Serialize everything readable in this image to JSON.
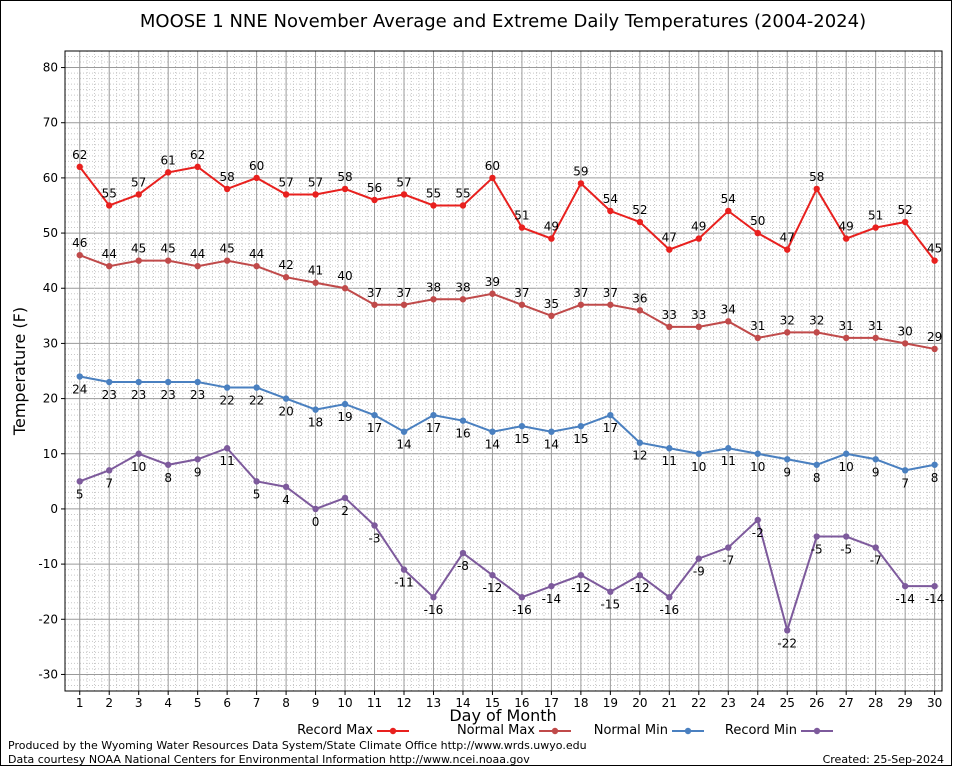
{
  "chart_data": {
    "type": "line",
    "title": "MOOSE 1 NNE November Average and Extreme Daily Temperatures (2004-2024)",
    "xlabel": "Day of Month",
    "ylabel": "Temperature (F)",
    "ylim": [
      -33,
      83
    ],
    "yticks": [
      -30,
      -20,
      -10,
      0,
      10,
      20,
      30,
      40,
      50,
      60,
      70,
      80
    ],
    "x": [
      1,
      2,
      3,
      4,
      5,
      6,
      7,
      8,
      9,
      10,
      11,
      12,
      13,
      14,
      15,
      16,
      17,
      18,
      19,
      20,
      21,
      22,
      23,
      24,
      25,
      26,
      27,
      28,
      29,
      30
    ],
    "grid": true,
    "legend_position": "bottom",
    "series": [
      {
        "name": "Record Max",
        "color": "#e8201e",
        "label_pos": "above",
        "values": [
          62,
          55,
          57,
          61,
          62,
          58,
          60,
          57,
          57,
          58,
          56,
          57,
          55,
          55,
          60,
          51,
          49,
          59,
          54,
          52,
          47,
          49,
          54,
          50,
          47,
          58,
          49,
          51,
          52,
          45
        ]
      },
      {
        "name": "Normal Max",
        "color": "#c04a4a",
        "label_pos": "above",
        "values": [
          46,
          44,
          45,
          45,
          44,
          45,
          44,
          42,
          41,
          40,
          37,
          37,
          38,
          38,
          39,
          37,
          35,
          37,
          37,
          36,
          33,
          33,
          34,
          31,
          32,
          32,
          31,
          31,
          30,
          29
        ]
      },
      {
        "name": "Normal Min",
        "color": "#4a80c0",
        "label_pos": "below",
        "values": [
          24,
          23,
          23,
          23,
          23,
          22,
          22,
          20,
          18,
          19,
          17,
          14,
          17,
          16,
          14,
          15,
          14,
          15,
          17,
          12,
          11,
          10,
          11,
          10,
          9,
          8,
          10,
          9,
          7,
          8
        ]
      },
      {
        "name": "Record Min",
        "color": "#7d5a9c",
        "label_pos": "below",
        "values": [
          5,
          7,
          10,
          8,
          9,
          11,
          5,
          4,
          0,
          2,
          -3,
          -11,
          -16,
          -8,
          -12,
          -16,
          -14,
          -12,
          -15,
          -12,
          -16,
          -9,
          -7,
          -2,
          -22,
          -5,
          -5,
          -7,
          -14,
          -14
        ]
      }
    ]
  },
  "footer": {
    "produced": "Produced by the Wyoming Water Resources Data System/State Climate Office http://www.wrds.uwyo.edu",
    "courtesy": "Data courtesy NOAA National Centers for Environmental Information http://www.ncei.noaa.gov",
    "created": "Created:  25-Sep-2024"
  }
}
